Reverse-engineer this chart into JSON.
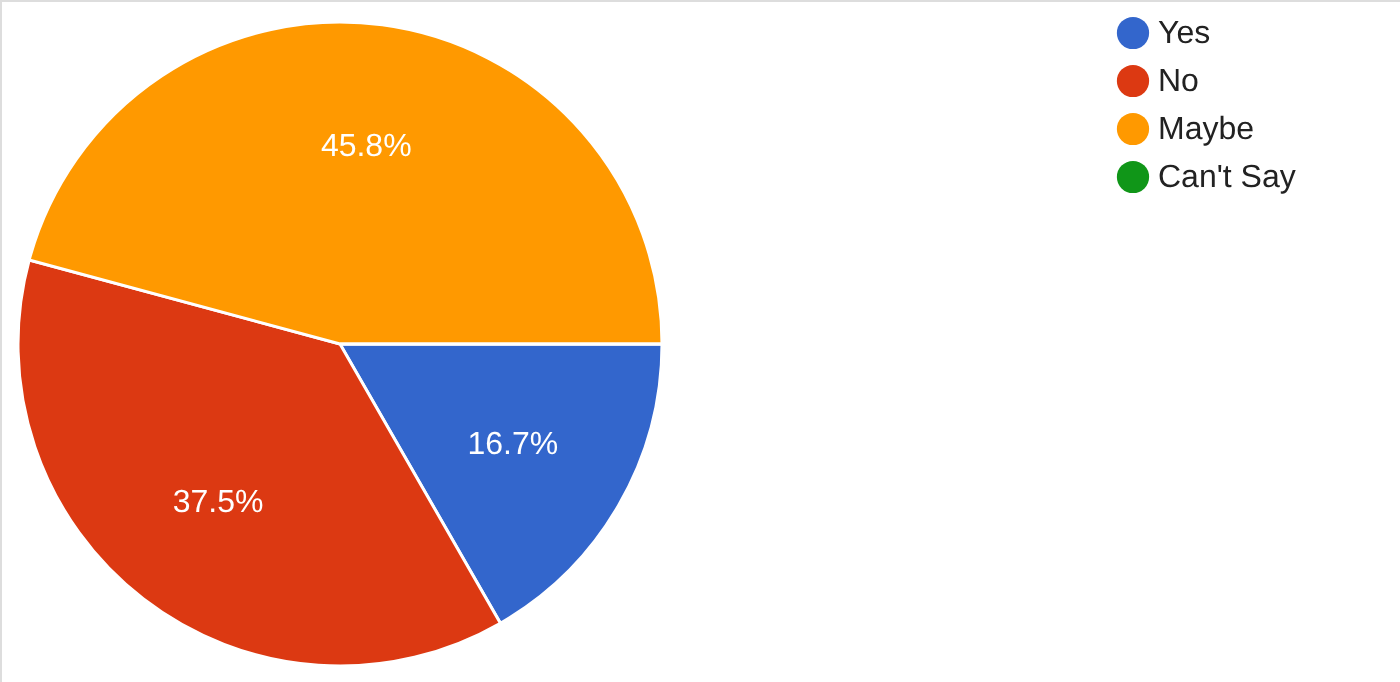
{
  "chart_data": {
    "type": "pie",
    "categories": [
      "Yes",
      "No",
      "Maybe",
      "Can't Say"
    ],
    "values": [
      16.7,
      37.5,
      45.8,
      0
    ],
    "colors": [
      "#3366cc",
      "#dc3912",
      "#ff9900",
      "#109618"
    ],
    "value_labels": [
      "16.7%",
      "37.5%",
      "45.8%",
      null
    ],
    "legend": "right"
  }
}
